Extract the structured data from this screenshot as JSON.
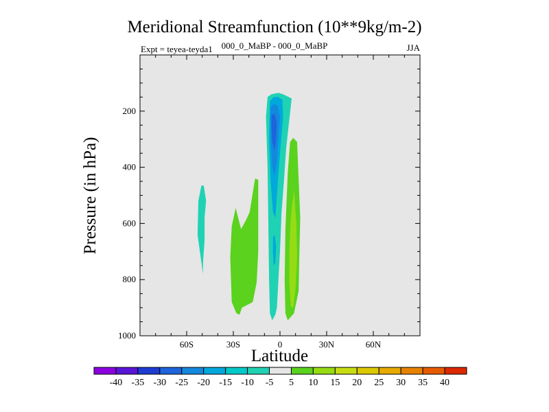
{
  "chart_data": {
    "type": "contour",
    "title": "Meridional Streamfunction (10**9kg/m-2)",
    "subtitle_left": "Expt = teyea-teyda1",
    "subtitle_center": "000_0_MaBP - 000_0_MaBP",
    "subtitle_right": "JJA",
    "xlabel": "Latitude",
    "ylabel": "Pressure (in hPa)",
    "xlim": [
      -90,
      90
    ],
    "ylim": [
      1000,
      0
    ],
    "x_ticks": [
      {
        "value": -60,
        "label": "60S"
      },
      {
        "value": -30,
        "label": "30S"
      },
      {
        "value": 0,
        "label": "0"
      },
      {
        "value": 30,
        "label": "30N"
      },
      {
        "value": 60,
        "label": "60N"
      }
    ],
    "y_ticks": [
      {
        "value": 200,
        "label": "200"
      },
      {
        "value": 400,
        "label": "400"
      },
      {
        "value": 600,
        "label": "600"
      },
      {
        "value": 800,
        "label": "800"
      },
      {
        "value": 1000,
        "label": "1000"
      }
    ],
    "background_color": "#e6e6e6",
    "contour_levels": [
      -40,
      -35,
      -30,
      -25,
      -20,
      -15,
      -10,
      -5,
      5,
      10,
      15,
      20,
      25,
      30,
      35,
      40
    ],
    "colorbar_colors": [
      "#8c00e0",
      "#5a14d8",
      "#1e3cd2",
      "#1e64dc",
      "#1488dc",
      "#00a8dc",
      "#00c8c8",
      "#20d2b4",
      "#e6e6e6",
      "#5ad21e",
      "#96dc14",
      "#c8dc14",
      "#dcc800",
      "#e6aa00",
      "#e68200",
      "#e65a00",
      "#dc2800"
    ],
    "regions": [
      {
        "name": "southern-cell-weak",
        "level": -10,
        "color": "#20d2b4",
        "points": [
          [
            -50.5,
            465
          ],
          [
            -49,
            465
          ],
          [
            -47.5,
            520
          ],
          [
            -48.5,
            580
          ],
          [
            -48.5,
            660
          ],
          [
            -49.5,
            740
          ],
          [
            -49.5,
            780
          ],
          [
            -51,
            720
          ],
          [
            -53,
            640
          ],
          [
            -52.5,
            520
          ]
        ]
      },
      {
        "name": "southern-cell-positive",
        "level": 5,
        "color": "#5ad21e",
        "points": [
          [
            -28.5,
            545
          ],
          [
            -25,
            620
          ],
          [
            -22,
            590
          ],
          [
            -19.5,
            560
          ],
          [
            -16,
            440
          ],
          [
            -14,
            445
          ],
          [
            -14,
            700
          ],
          [
            -15,
            810
          ],
          [
            -17.5,
            880
          ],
          [
            -24.5,
            900
          ],
          [
            -26,
            925
          ],
          [
            -28,
            920
          ],
          [
            -31,
            880
          ],
          [
            -32,
            720
          ],
          [
            -31,
            610
          ]
        ]
      },
      {
        "name": "hadley-cell-outer",
        "level": -10,
        "color": "#20d2b4",
        "points": [
          [
            -8,
            150
          ],
          [
            -5.5,
            140
          ],
          [
            -1,
            135
          ],
          [
            2,
            140
          ],
          [
            7.5,
            155
          ],
          [
            6,
            230
          ],
          [
            4,
            330
          ],
          [
            2.5,
            450
          ],
          [
            1,
            560
          ],
          [
            0,
            700
          ],
          [
            -1,
            800
          ],
          [
            -2,
            900
          ],
          [
            -3,
            925
          ],
          [
            -5,
            945
          ],
          [
            -6.5,
            920
          ],
          [
            -7,
            800
          ],
          [
            -7.5,
            600
          ],
          [
            -8,
            400
          ],
          [
            -9,
            220
          ]
        ]
      },
      {
        "name": "hadley-cell-15",
        "level": -15,
        "color": "#00a8dc",
        "points": [
          [
            -6.5,
            165
          ],
          [
            -4,
            150
          ],
          [
            -1,
            150
          ],
          [
            1.5,
            160
          ],
          [
            2,
            220
          ],
          [
            0.5,
            320
          ],
          [
            -1,
            420
          ],
          [
            -2,
            500
          ],
          [
            -3,
            580
          ],
          [
            -4.5,
            560
          ],
          [
            -6,
            450
          ],
          [
            -7,
            300
          ]
        ]
      },
      {
        "name": "hadley-cell-20",
        "level": -20,
        "color": "#1488dc",
        "points": [
          [
            -6,
            185
          ],
          [
            -4,
            175
          ],
          [
            -1.5,
            180
          ],
          [
            0,
            220
          ],
          [
            -1,
            300
          ],
          [
            -2,
            380
          ],
          [
            -3.5,
            430
          ],
          [
            -5,
            400
          ],
          [
            -6,
            300
          ]
        ]
      },
      {
        "name": "hadley-cell-25",
        "level": -25,
        "color": "#1e64dc",
        "points": [
          [
            -5.5,
            215
          ],
          [
            -3.5,
            210
          ],
          [
            -2,
            240
          ],
          [
            -2.5,
            300
          ],
          [
            -3.5,
            340
          ],
          [
            -5,
            310
          ],
          [
            -5.5,
            250
          ]
        ]
      },
      {
        "name": "hadley-lower-blob",
        "level": -15,
        "color": "#00a8dc",
        "points": [
          [
            -4.5,
            650
          ],
          [
            -3.5,
            640
          ],
          [
            -2.5,
            680
          ],
          [
            -3,
            740
          ],
          [
            -4,
            750
          ],
          [
            -4.5,
            700
          ]
        ]
      },
      {
        "name": "ferrel-cell-positive",
        "level": 5,
        "color": "#5ad21e",
        "points": [
          [
            8.5,
            295
          ],
          [
            11,
            310
          ],
          [
            13,
            580
          ],
          [
            12.5,
            700
          ],
          [
            12,
            840
          ],
          [
            9,
            920
          ],
          [
            5,
            945
          ],
          [
            3.5,
            920
          ],
          [
            3,
            800
          ],
          [
            3.5,
            620
          ],
          [
            5,
            420
          ],
          [
            6.5,
            310
          ]
        ]
      },
      {
        "name": "ferrel-cell-10",
        "level": 10,
        "color": "#96dc14",
        "points": [
          [
            9,
            480
          ],
          [
            10.5,
            600
          ],
          [
            11,
            720
          ],
          [
            10,
            830
          ],
          [
            8.5,
            900
          ],
          [
            7,
            895
          ],
          [
            6,
            810
          ],
          [
            6,
            700
          ],
          [
            7,
            570
          ]
        ]
      }
    ],
    "colorbar_labels": [
      "-40",
      "-35",
      "-30",
      "-25",
      "-20",
      "-15",
      "-10",
      "-5",
      "5",
      "10",
      "15",
      "20",
      "25",
      "30",
      "35",
      "40"
    ]
  }
}
